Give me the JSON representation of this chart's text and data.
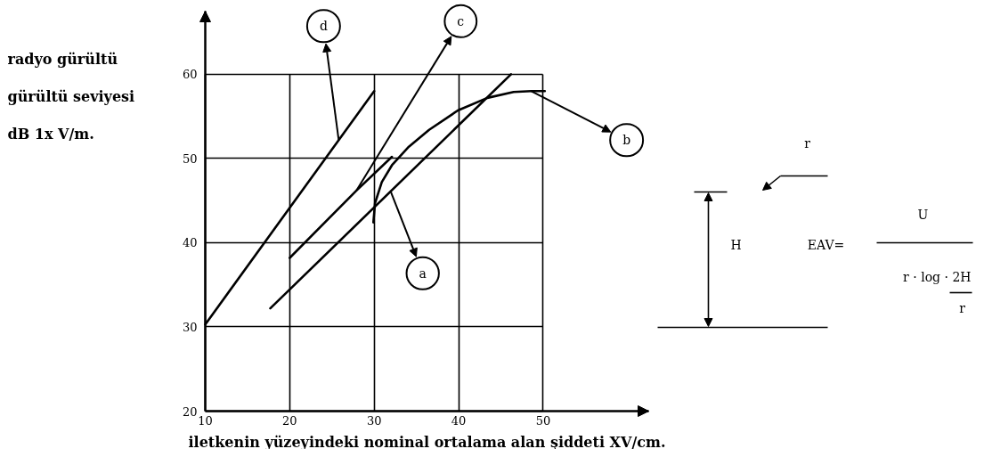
{
  "chart_data": {
    "type": "line",
    "xlabel": "iletkenin yüzeyindeki nominal ortalama alan şiddeti XV/cm.",
    "ylabel": "radyo gürültü\ngürültü seviyesi\ndB 1x V/m.",
    "xlim": [
      10,
      62.5
    ],
    "ylim": [
      20,
      67.5
    ],
    "xticks": [
      10,
      20,
      30,
      40,
      50
    ],
    "yticks": [
      20,
      30,
      40,
      50,
      60
    ],
    "grid": true,
    "line_style": "solid",
    "series": [
      {
        "name": "a",
        "color": "#000000",
        "x": [
          17.7,
          46.2
        ],
        "values": [
          32.2,
          60.0
        ]
      },
      {
        "name": "b",
        "color": "#000000",
        "x": [
          29.9,
          30.1,
          30.9,
          32.1,
          34.1,
          36.5,
          39.9,
          43.4,
          46.5,
          48.6,
          50.2
        ],
        "values": [
          42.4,
          44.7,
          47.2,
          49.2,
          51.4,
          53.4,
          55.7,
          57.2,
          57.9,
          58.0,
          58.0
        ]
      },
      {
        "name": "c",
        "color": "#000000",
        "x": [
          20.0,
          27.9,
          32.1
        ],
        "values": [
          38.2,
          46.2,
          50.2
        ]
      },
      {
        "name": "d",
        "color": "#000000",
        "x": [
          10,
          30
        ],
        "values": [
          30.3,
          58.0
        ]
      }
    ],
    "annotations": [
      "r",
      "H",
      "EAV=",
      "U",
      "r · log · 2H",
      "r"
    ]
  }
}
